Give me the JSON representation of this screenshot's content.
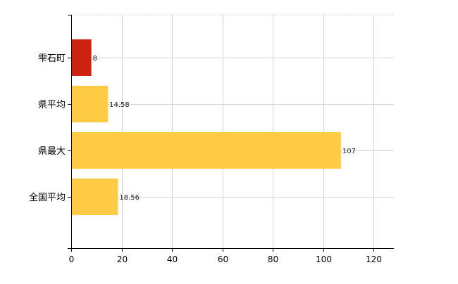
{
  "chart_data": {
    "type": "bar",
    "orientation": "horizontal",
    "categories": [
      "雫石町",
      "県平均",
      "県最大",
      "全国平均"
    ],
    "values": [
      8,
      14.58,
      107,
      18.56
    ],
    "data_labels": [
      "8",
      "14.58",
      "107",
      "18.56"
    ],
    "bar_colors": [
      "#cc2211",
      "#ffcc44",
      "#ffcc44",
      "#ffcc44"
    ],
    "xlim": [
      0,
      128
    ],
    "xticks": [
      0,
      20,
      40,
      60,
      80,
      100,
      120
    ],
    "xtick_labels": [
      "0",
      "20",
      "40",
      "60",
      "80",
      "100",
      "120"
    ],
    "title": "",
    "xlabel": "",
    "ylabel": "",
    "grid": true,
    "legend": "none"
  },
  "colors": {
    "highlight": "#cc2211",
    "default": "#ffcc44",
    "grid": "#d3d3d3",
    "axis": "#000000"
  }
}
